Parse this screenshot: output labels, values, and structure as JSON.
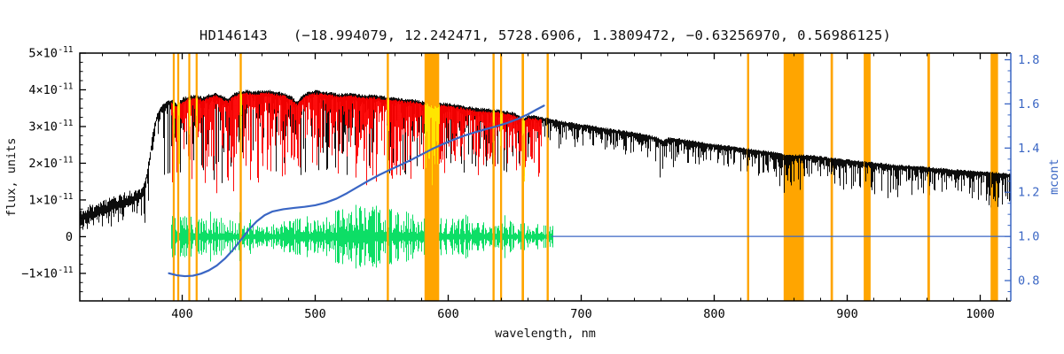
{
  "colors": {
    "background": "#ffffff",
    "frame": "#000000",
    "spectrum": "#000000",
    "fit": "#fd0000",
    "residuals": "#00dd5e",
    "mcont": "#3a66c4",
    "mask_band": "#ffa500",
    "masked_points": "#ffe800"
  },
  "chart_data": {
    "type": "line",
    "title": "HD146143   (−18.994079, 12.242471, 5728.6906, 1.3809472, −0.63256970, 0.56986125)",
    "xlabel": "wavelength, nm",
    "ylabel": "flux, units",
    "ylabel_right": "mcont",
    "x_axis": {
      "range": [
        323,
        1023
      ],
      "major_ticks": [
        400,
        500,
        600,
        700,
        800,
        900,
        1000
      ],
      "minor_tick_step": 20
    },
    "y_axis_left": {
      "range": [
        -1.75,
        5.0
      ],
      "unit_exponent": -11,
      "major_ticks": [
        -1,
        0,
        1,
        2,
        3,
        4,
        5
      ],
      "minor_tick_step": 0.25
    },
    "y_axis_right": {
      "range": [
        0.708,
        1.83
      ],
      "major_ticks": [
        0.8,
        1.0,
        1.2,
        1.4,
        1.6,
        1.8
      ],
      "minor_tick_step": 0.05
    },
    "mask_bands_nm": [
      [
        392.9,
        394.3
      ],
      [
        396.3,
        397.7
      ],
      [
        404.6,
        406.0
      ],
      [
        410.1,
        411.6
      ],
      [
        443.2,
        444.8
      ],
      [
        553.8,
        555.4
      ],
      [
        582.2,
        593.2
      ],
      [
        633.3,
        634.9
      ],
      [
        639.0,
        640.5
      ],
      [
        655.2,
        657.0
      ],
      [
        674.0,
        675.6
      ],
      [
        824.7,
        826.3
      ],
      [
        852.2,
        867.4
      ],
      [
        887.5,
        889.3
      ],
      [
        912.4,
        917.6
      ],
      [
        960.3,
        962.2
      ],
      [
        1007.8,
        1013.4
      ]
    ],
    "series": [
      {
        "name": "observed-spectrum",
        "role": "noisy-spectrum",
        "color_key": "spectrum",
        "range_nm": [
          323,
          1023
        ],
        "seed": 11,
        "continuum": [
          [
            323,
            0.5
          ],
          [
            328,
            0.55
          ],
          [
            334,
            0.62
          ],
          [
            340,
            0.7
          ],
          [
            346,
            0.78
          ],
          [
            352,
            0.87
          ],
          [
            358,
            0.95
          ],
          [
            364,
            1.02
          ],
          [
            368,
            1.1
          ],
          [
            371,
            1.28
          ],
          [
            373,
            1.65
          ],
          [
            375,
            2.1
          ],
          [
            377,
            2.6
          ],
          [
            379,
            3.0
          ],
          [
            381,
            3.28
          ],
          [
            384,
            3.48
          ],
          [
            388,
            3.62
          ],
          [
            392,
            3.68
          ],
          [
            396,
            3.55
          ],
          [
            400,
            3.72
          ],
          [
            405,
            3.78
          ],
          [
            410,
            3.8
          ],
          [
            415,
            3.74
          ],
          [
            420,
            3.82
          ],
          [
            425,
            3.86
          ],
          [
            430,
            3.78
          ],
          [
            434,
            3.7
          ],
          [
            438,
            3.84
          ],
          [
            443,
            3.9
          ],
          [
            448,
            3.94
          ],
          [
            453,
            3.9
          ],
          [
            458,
            3.92
          ],
          [
            464,
            3.94
          ],
          [
            470,
            3.9
          ],
          [
            476,
            3.86
          ],
          [
            482,
            3.76
          ],
          [
            486,
            3.62
          ],
          [
            490,
            3.8
          ],
          [
            495,
            3.9
          ],
          [
            500,
            3.93
          ],
          [
            506,
            3.9
          ],
          [
            512,
            3.88
          ],
          [
            518,
            3.83
          ],
          [
            524,
            3.86
          ],
          [
            530,
            3.84
          ],
          [
            536,
            3.8
          ],
          [
            542,
            3.82
          ],
          [
            548,
            3.79
          ],
          [
            554,
            3.76
          ],
          [
            560,
            3.74
          ],
          [
            566,
            3.7
          ],
          [
            572,
            3.7
          ],
          [
            578,
            3.66
          ],
          [
            584,
            3.6
          ],
          [
            589,
            3.52
          ],
          [
            594,
            3.6
          ],
          [
            600,
            3.58
          ],
          [
            607,
            3.54
          ],
          [
            614,
            3.5
          ],
          [
            621,
            3.46
          ],
          [
            628,
            3.44
          ],
          [
            635,
            3.42
          ],
          [
            642,
            3.38
          ],
          [
            649,
            3.33
          ],
          [
            654,
            3.24
          ],
          [
            657,
            3.18
          ],
          [
            660,
            3.26
          ],
          [
            666,
            3.24
          ],
          [
            672,
            3.2
          ],
          [
            680,
            3.14
          ],
          [
            690,
            3.07
          ],
          [
            700,
            3.02
          ],
          [
            712,
            2.95
          ],
          [
            724,
            2.88
          ],
          [
            736,
            2.82
          ],
          [
            748,
            2.74
          ],
          [
            756,
            2.68
          ],
          [
            761,
            2.58
          ],
          [
            766,
            2.66
          ],
          [
            775,
            2.62
          ],
          [
            785,
            2.56
          ],
          [
            795,
            2.5
          ],
          [
            805,
            2.46
          ],
          [
            815,
            2.41
          ],
          [
            825,
            2.36
          ],
          [
            835,
            2.31
          ],
          [
            845,
            2.26
          ],
          [
            852,
            2.2
          ],
          [
            858,
            2.18
          ],
          [
            866,
            2.19
          ],
          [
            875,
            2.17
          ],
          [
            885,
            2.12
          ],
          [
            895,
            2.08
          ],
          [
            905,
            2.04
          ],
          [
            915,
            2.0
          ],
          [
            925,
            1.97
          ],
          [
            935,
            1.92
          ],
          [
            945,
            1.9
          ],
          [
            955,
            1.88
          ],
          [
            965,
            1.84
          ],
          [
            975,
            1.81
          ],
          [
            985,
            1.78
          ],
          [
            995,
            1.75
          ],
          [
            1005,
            1.73
          ],
          [
            1014,
            1.7
          ],
          [
            1023,
            1.68
          ]
        ],
        "upper_noise": [
          [
            323,
            0.3
          ],
          [
            355,
            0.3
          ],
          [
            366,
            0.26
          ],
          [
            372,
            0.16
          ],
          [
            380,
            0.1
          ],
          [
            388,
            0.08
          ],
          [
            450,
            0.07
          ],
          [
            700,
            0.06
          ],
          [
            1023,
            0.05
          ]
        ],
        "line_depth": [
          [
            323,
            0.38
          ],
          [
            360,
            0.42
          ],
          [
            368,
            0.55
          ],
          [
            372,
            0.95
          ],
          [
            380,
            1.4
          ],
          [
            386,
            1.9
          ],
          [
            392,
            2.3
          ],
          [
            410,
            2.45
          ],
          [
            430,
            2.4
          ],
          [
            460,
            2.15
          ],
          [
            490,
            2.05
          ],
          [
            520,
            2.2
          ],
          [
            550,
            2.15
          ],
          [
            580,
            1.95
          ],
          [
            610,
            1.8
          ],
          [
            640,
            1.6
          ],
          [
            660,
            1.4
          ],
          [
            668,
            1.1
          ],
          [
            674,
            0.7
          ],
          [
            690,
            0.55
          ],
          [
            715,
            0.5
          ],
          [
            745,
            0.55
          ],
          [
            757,
            0.85
          ],
          [
            762,
            1.05
          ],
          [
            770,
            0.6
          ],
          [
            790,
            0.5
          ],
          [
            815,
            0.52
          ],
          [
            840,
            0.6
          ],
          [
            850,
            0.95
          ],
          [
            860,
            1.0
          ],
          [
            870,
            0.8
          ],
          [
            882,
            0.6
          ],
          [
            898,
            0.72
          ],
          [
            915,
            0.68
          ],
          [
            932,
            0.8
          ],
          [
            948,
            0.72
          ],
          [
            965,
            0.62
          ],
          [
            985,
            0.6
          ],
          [
            1000,
            0.65
          ],
          [
            1010,
            0.85
          ],
          [
            1018,
            0.8
          ],
          [
            1023,
            0.75
          ]
        ]
      },
      {
        "name": "fitted-spectrum",
        "role": "noisy-fit",
        "color_key": "fit",
        "range_nm": [
          391.5,
          670
        ],
        "continuum_offset": -0.06,
        "seed": 22,
        "depth_scale": [
          [
            391,
            2.35
          ],
          [
            405,
            2.45
          ],
          [
            420,
            2.5
          ],
          [
            440,
            2.35
          ],
          [
            460,
            2.1
          ],
          [
            478,
            1.85
          ],
          [
            495,
            1.7
          ],
          [
            510,
            1.75
          ],
          [
            525,
            2.0
          ],
          [
            540,
            2.15
          ],
          [
            555,
            2.1
          ],
          [
            570,
            1.95
          ],
          [
            585,
            1.7
          ],
          [
            600,
            1.55
          ],
          [
            615,
            1.45
          ],
          [
            630,
            1.4
          ],
          [
            645,
            1.32
          ],
          [
            660,
            1.25
          ],
          [
            670,
            1.2
          ]
        ]
      },
      {
        "name": "residuals",
        "role": "noisy-residual",
        "color_key": "residuals",
        "range_nm": [
          391.5,
          678.5
        ],
        "seed": 33,
        "amplitude": [
          [
            391,
            0.5
          ],
          [
            400,
            0.47
          ],
          [
            412,
            0.42
          ],
          [
            424,
            0.37
          ],
          [
            436,
            0.33
          ],
          [
            448,
            0.3
          ],
          [
            460,
            0.28
          ],
          [
            472,
            0.3
          ],
          [
            484,
            0.35
          ],
          [
            496,
            0.4
          ],
          [
            508,
            0.45
          ],
          [
            520,
            0.52
          ],
          [
            532,
            0.58
          ],
          [
            544,
            0.6
          ],
          [
            556,
            0.55
          ],
          [
            568,
            0.48
          ],
          [
            580,
            0.42
          ],
          [
            592,
            0.38
          ],
          [
            604,
            0.35
          ],
          [
            616,
            0.33
          ],
          [
            628,
            0.31
          ],
          [
            640,
            0.29
          ],
          [
            652,
            0.27
          ],
          [
            664,
            0.26
          ],
          [
            678,
            0.25
          ]
        ]
      },
      {
        "name": "mcont-curve",
        "role": "curve",
        "axis": "right",
        "color_key": "mcont",
        "line_width": 2.2,
        "points": [
          [
            390,
            0.833
          ],
          [
            396,
            0.824
          ],
          [
            402,
            0.82
          ],
          [
            408,
            0.822
          ],
          [
            414,
            0.831
          ],
          [
            420,
            0.846
          ],
          [
            426,
            0.868
          ],
          [
            432,
            0.899
          ],
          [
            438,
            0.938
          ],
          [
            444,
            0.983
          ],
          [
            450,
            1.03
          ],
          [
            456,
            1.068
          ],
          [
            462,
            1.096
          ],
          [
            468,
            1.113
          ],
          [
            476,
            1.123
          ],
          [
            484,
            1.129
          ],
          [
            492,
            1.134
          ],
          [
            500,
            1.141
          ],
          [
            508,
            1.153
          ],
          [
            516,
            1.171
          ],
          [
            524,
            1.196
          ],
          [
            532,
            1.224
          ],
          [
            540,
            1.252
          ],
          [
            548,
            1.278
          ],
          [
            556,
            1.301
          ],
          [
            564,
            1.323
          ],
          [
            572,
            1.346
          ],
          [
            580,
            1.371
          ],
          [
            588,
            1.396
          ],
          [
            596,
            1.418
          ],
          [
            604,
            1.438
          ],
          [
            612,
            1.456
          ],
          [
            620,
            1.471
          ],
          [
            628,
            1.485
          ],
          [
            636,
            1.498
          ],
          [
            644,
            1.513
          ],
          [
            652,
            1.531
          ],
          [
            660,
            1.553
          ],
          [
            666,
            1.573
          ],
          [
            672,
            1.592
          ]
        ]
      },
      {
        "name": "mcont-baseline",
        "role": "curve",
        "axis": "right",
        "color_key": "mcont",
        "line_width": 1.3,
        "points": [
          [
            678,
            1.0
          ],
          [
            1023,
            1.0
          ]
        ]
      }
    ],
    "masked_redraw": {
      "seed": 44
    }
  }
}
